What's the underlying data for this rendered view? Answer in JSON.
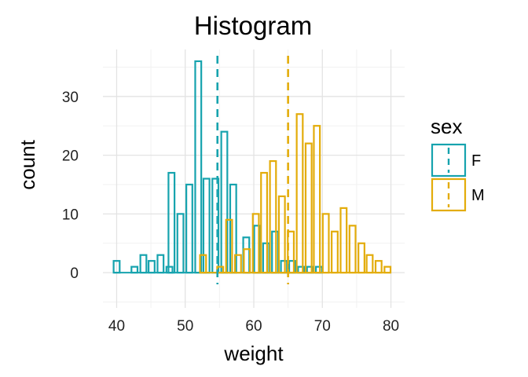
{
  "chart_data": {
    "type": "histogram",
    "title": "Histogram",
    "xlabel": "weight",
    "ylabel": "count",
    "xlim": [
      38,
      82
    ],
    "ylim": [
      -6,
      38
    ],
    "x_ticks": [
      40,
      50,
      60,
      70,
      80
    ],
    "y_ticks": [
      0,
      10,
      20,
      30
    ],
    "grid": true,
    "legend_position": "right",
    "legend": {
      "title": "sex"
    },
    "colors": {
      "F": "#16A3AE",
      "M": "#E3AC0A"
    },
    "bin_width": 0.88,
    "series": [
      {
        "name": "F",
        "color": "#16A3AE",
        "mean": 54.7,
        "bins": [
          {
            "x": 40.0,
            "count": 2
          },
          {
            "x": 42.6,
            "count": 1
          },
          {
            "x": 43.9,
            "count": 3
          },
          {
            "x": 45.1,
            "count": 2
          },
          {
            "x": 46.4,
            "count": 3
          },
          {
            "x": 47.7,
            "count": 1
          },
          {
            "x": 48.0,
            "count": 17
          },
          {
            "x": 49.3,
            "count": 10
          },
          {
            "x": 50.6,
            "count": 15
          },
          {
            "x": 51.9,
            "count": 36
          },
          {
            "x": 53.1,
            "count": 16
          },
          {
            "x": 54.4,
            "count": 16
          },
          {
            "x": 55.7,
            "count": 24
          },
          {
            "x": 57.0,
            "count": 15
          },
          {
            "x": 58.9,
            "count": 6
          },
          {
            "x": 60.5,
            "count": 8
          },
          {
            "x": 61.8,
            "count": 5
          },
          {
            "x": 63.1,
            "count": 7
          },
          {
            "x": 64.4,
            "count": 2
          },
          {
            "x": 65.6,
            "count": 2
          },
          {
            "x": 66.9,
            "count": 1
          },
          {
            "x": 68.2,
            "count": 1
          },
          {
            "x": 69.5,
            "count": 1
          }
        ]
      },
      {
        "name": "M",
        "color": "#E3AC0A",
        "mean": 65.0,
        "bins": [
          {
            "x": 52.6,
            "count": 3
          },
          {
            "x": 55.1,
            "count": 1
          },
          {
            "x": 56.4,
            "count": 9
          },
          {
            "x": 57.7,
            "count": 3
          },
          {
            "x": 59.0,
            "count": 4
          },
          {
            "x": 60.3,
            "count": 10
          },
          {
            "x": 61.5,
            "count": 17
          },
          {
            "x": 62.8,
            "count": 19
          },
          {
            "x": 64.1,
            "count": 13
          },
          {
            "x": 65.4,
            "count": 7
          },
          {
            "x": 66.7,
            "count": 27
          },
          {
            "x": 68.0,
            "count": 22
          },
          {
            "x": 69.2,
            "count": 25
          },
          {
            "x": 70.5,
            "count": 10
          },
          {
            "x": 71.8,
            "count": 7
          },
          {
            "x": 73.1,
            "count": 11
          },
          {
            "x": 74.4,
            "count": 8
          },
          {
            "x": 75.7,
            "count": 5
          },
          {
            "x": 76.9,
            "count": 3
          },
          {
            "x": 78.2,
            "count": 2
          },
          {
            "x": 79.5,
            "count": 1
          }
        ]
      }
    ]
  }
}
